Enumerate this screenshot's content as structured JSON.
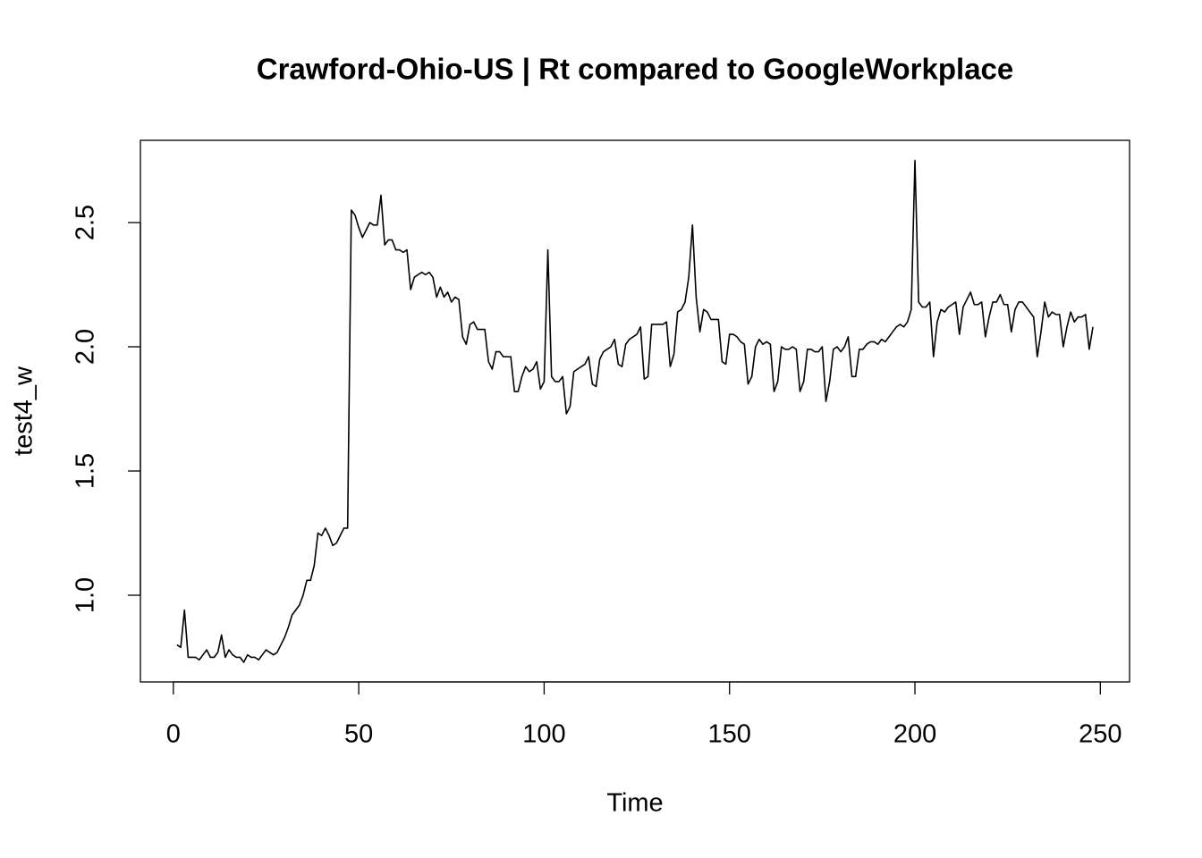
{
  "chart_data": {
    "type": "line",
    "title": "Crawford-Ohio-US | Rt compared to GoogleWorkplace",
    "xlabel": "Time",
    "ylabel": "test4_w",
    "x": [
      1,
      2,
      3,
      4,
      5,
      6,
      7,
      8,
      9,
      10,
      11,
      12,
      13,
      14,
      15,
      16,
      17,
      18,
      19,
      20,
      21,
      22,
      23,
      24,
      25,
      26,
      27,
      28,
      29,
      30,
      31,
      32,
      33,
      34,
      35,
      36,
      37,
      38,
      39,
      40,
      41,
      42,
      43,
      44,
      45,
      46,
      47,
      48,
      49,
      50,
      51,
      52,
      53,
      54,
      55,
      56,
      57,
      58,
      59,
      60,
      61,
      62,
      63,
      64,
      65,
      66,
      67,
      68,
      69,
      70,
      71,
      72,
      73,
      74,
      75,
      76,
      77,
      78,
      79,
      80,
      81,
      82,
      83,
      84,
      85,
      86,
      87,
      88,
      89,
      90,
      91,
      92,
      93,
      94,
      95,
      96,
      97,
      98,
      99,
      100,
      101,
      102,
      103,
      104,
      105,
      106,
      107,
      108,
      109,
      110,
      111,
      112,
      113,
      114,
      115,
      116,
      117,
      118,
      119,
      120,
      121,
      122,
      123,
      124,
      125,
      126,
      127,
      128,
      129,
      130,
      131,
      132,
      133,
      134,
      135,
      136,
      137,
      138,
      139,
      140,
      141,
      142,
      143,
      144,
      145,
      146,
      147,
      148,
      149,
      150,
      151,
      152,
      153,
      154,
      155,
      156,
      157,
      158,
      159,
      160,
      161,
      162,
      163,
      164,
      165,
      166,
      167,
      168,
      169,
      170,
      171,
      172,
      173,
      174,
      175,
      176,
      177,
      178,
      179,
      180,
      181,
      182,
      183,
      184,
      185,
      186,
      187,
      188,
      189,
      190,
      191,
      192,
      193,
      194,
      195,
      196,
      197,
      198,
      199,
      200,
      201,
      202,
      203,
      204,
      205,
      206,
      207,
      208,
      209,
      210,
      211,
      212,
      213,
      214,
      215,
      216,
      217,
      218,
      219,
      220,
      221,
      222,
      223,
      224,
      225,
      226,
      227,
      228,
      229,
      230,
      231,
      232,
      233,
      234,
      235,
      236,
      237,
      238,
      239,
      240,
      241,
      242,
      243,
      244,
      245,
      246,
      247,
      248
    ],
    "series": [
      {
        "color": "#000000",
        "values": [
          0.8,
          0.79,
          0.94,
          0.75,
          0.75,
          0.75,
          0.74,
          0.76,
          0.78,
          0.75,
          0.75,
          0.77,
          0.84,
          0.75,
          0.78,
          0.76,
          0.75,
          0.75,
          0.73,
          0.76,
          0.75,
          0.75,
          0.74,
          0.76,
          0.78,
          0.77,
          0.76,
          0.77,
          0.8,
          0.83,
          0.87,
          0.92,
          0.94,
          0.96,
          1.0,
          1.06,
          1.06,
          1.12,
          1.25,
          1.24,
          1.27,
          1.24,
          1.2,
          1.21,
          1.24,
          1.27,
          1.27,
          2.55,
          2.53,
          2.48,
          2.44,
          2.47,
          2.5,
          2.49,
          2.49,
          2.61,
          2.41,
          2.43,
          2.43,
          2.39,
          2.39,
          2.38,
          2.39,
          2.23,
          2.28,
          2.29,
          2.3,
          2.29,
          2.3,
          2.28,
          2.2,
          2.24,
          2.2,
          2.22,
          2.18,
          2.2,
          2.19,
          2.04,
          2.01,
          2.09,
          2.1,
          2.07,
          2.07,
          2.07,
          1.94,
          1.91,
          1.98,
          1.98,
          1.96,
          1.96,
          1.96,
          1.82,
          1.82,
          1.88,
          1.92,
          1.9,
          1.91,
          1.94,
          1.83,
          1.86,
          2.39,
          1.88,
          1.86,
          1.86,
          1.88,
          1.73,
          1.76,
          1.9,
          1.91,
          1.92,
          1.93,
          1.96,
          1.85,
          1.84,
          1.95,
          1.98,
          1.99,
          2.0,
          2.03,
          1.93,
          1.92,
          2.01,
          2.03,
          2.04,
          2.05,
          2.08,
          1.87,
          1.88,
          2.09,
          2.09,
          2.09,
          2.09,
          2.1,
          1.92,
          1.97,
          2.14,
          2.15,
          2.18,
          2.28,
          2.49,
          2.2,
          2.06,
          2.15,
          2.14,
          2.11,
          2.11,
          2.11,
          1.94,
          1.93,
          2.05,
          2.05,
          2.04,
          2.02,
          2.01,
          1.85,
          1.88,
          2.0,
          2.03,
          2.01,
          2.02,
          2.01,
          1.82,
          1.86,
          2.0,
          1.99,
          1.99,
          2.0,
          1.99,
          1.82,
          1.86,
          1.99,
          1.99,
          1.98,
          1.98,
          2.0,
          1.78,
          1.86,
          1.99,
          2.0,
          1.98,
          2.0,
          2.04,
          1.88,
          1.88,
          1.99,
          1.99,
          2.01,
          2.02,
          2.02,
          2.01,
          2.03,
          2.02,
          2.04,
          2.06,
          2.08,
          2.09,
          2.08,
          2.1,
          2.15,
          2.75,
          2.18,
          2.16,
          2.16,
          2.18,
          1.96,
          2.1,
          2.15,
          2.14,
          2.16,
          2.17,
          2.18,
          2.05,
          2.16,
          2.19,
          2.22,
          2.17,
          2.17,
          2.18,
          2.04,
          2.12,
          2.18,
          2.18,
          2.21,
          2.17,
          2.17,
          2.06,
          2.15,
          2.18,
          2.18,
          2.16,
          2.14,
          2.12,
          1.96,
          2.06,
          2.18,
          2.12,
          2.14,
          2.13,
          2.13,
          2.0,
          2.08,
          2.14,
          2.1,
          2.12,
          2.12,
          2.13,
          1.99,
          2.08
        ]
      }
    ],
    "xlim": [
      -8.88,
      257.88
    ],
    "ylim": [
      0.651,
      2.831
    ],
    "xticks": [
      0,
      50,
      100,
      150,
      200,
      250
    ],
    "yticks": [
      {
        "value": 1.0,
        "label": "1.0"
      },
      {
        "value": 1.5,
        "label": "1.5"
      },
      {
        "value": 2.0,
        "label": "2.0"
      },
      {
        "value": 2.5,
        "label": "2.5"
      }
    ],
    "grid": false
  }
}
